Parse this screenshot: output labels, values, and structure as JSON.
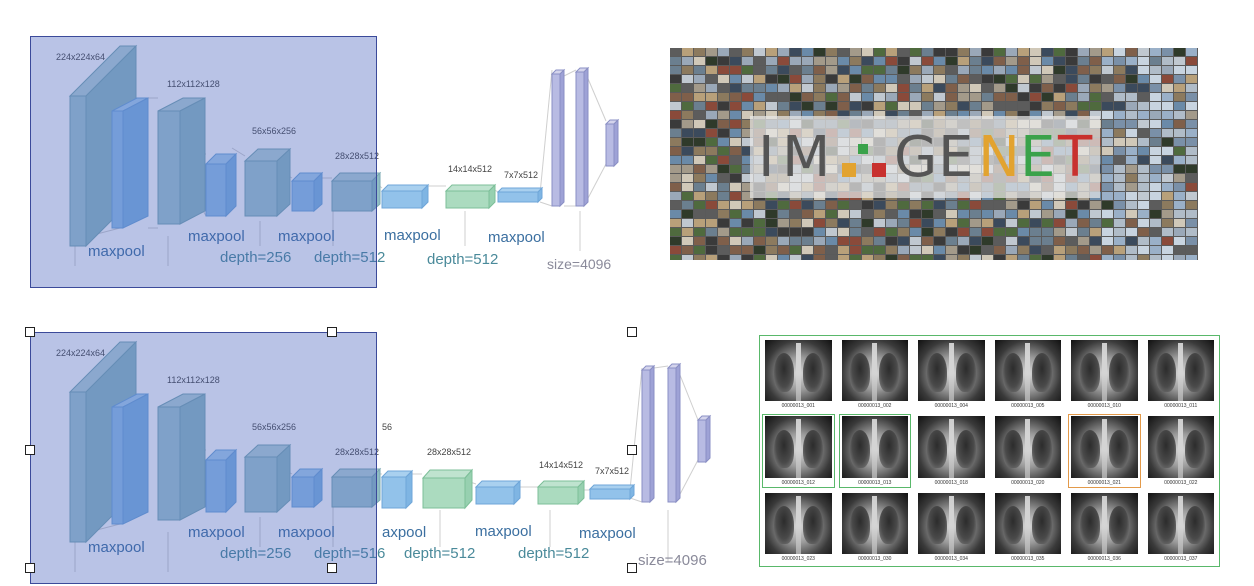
{
  "vgg_top": {
    "layers": [
      "224x224x64",
      "112x112x128",
      "56x56x256",
      "28x28x512",
      "14x14x512",
      "7x7x512"
    ],
    "labels": [
      "maxpool",
      "maxpool",
      "maxpool",
      "maxpool",
      "maxpool",
      "depth=256",
      "depth=512",
      "depth=512",
      "size=4096"
    ]
  },
  "vgg_bottom": {
    "layers": [
      "224x224x64",
      "112x112x128",
      "56x56x256",
      "28x28x512",
      "56",
      "28x28x512",
      "14x14x512",
      "7x7x512"
    ],
    "labels": [
      "maxpool",
      "maxpool",
      "maxpool",
      "axpool",
      "maxpool",
      "maxpool",
      "depth=256",
      "depth=516",
      "depth=512",
      "depth=512",
      "size=4096"
    ]
  },
  "imagenet": {
    "logo_letters": [
      "I",
      "M",
      "G",
      "E",
      "N",
      "E",
      "T"
    ]
  },
  "xray": {
    "captions": [
      "00000013_001",
      "00000013_002",
      "00000013_004",
      "00000013_005",
      "00000013_010",
      "00000013_011",
      "00000013_012",
      "00000013_013",
      "00000013_018",
      "00000013_020",
      "00000013_021",
      "00000013_022",
      "00000013_023",
      "00000013_030",
      "00000013_034",
      "00000013_035",
      "00000013_036",
      "00000013_037"
    ]
  }
}
